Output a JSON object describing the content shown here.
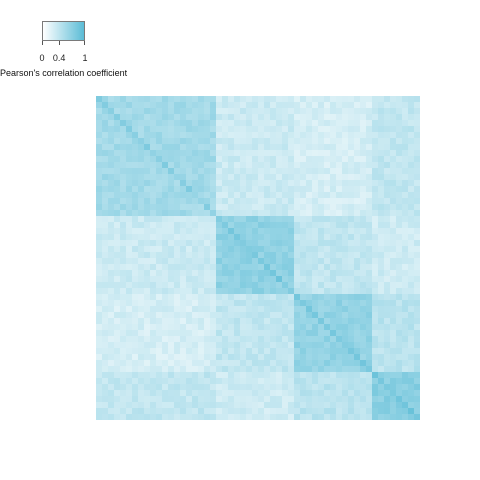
{
  "chart_data": {
    "type": "heatmap",
    "title": "",
    "xlabel": "",
    "ylabel": "",
    "legend": {
      "title": "Pearson's correlation coefficient",
      "ticks": [
        "0",
        "0.4",
        "1"
      ],
      "tick_values": [
        0,
        0.4,
        1
      ],
      "range": [
        0,
        1
      ],
      "placement": "top-left",
      "color_low": "#ffffff",
      "color_high": "#5bbcd6"
    },
    "grid_size": [
      54,
      54
    ],
    "cluster_blocks": [
      {
        "rows": [
          0,
          20
        ],
        "cols": [
          0,
          20
        ],
        "mean_r": 0.56
      },
      {
        "rows": [
          0,
          20
        ],
        "cols": [
          20,
          33
        ],
        "mean_r": 0.32
      },
      {
        "rows": [
          0,
          20
        ],
        "cols": [
          33,
          46
        ],
        "mean_r": 0.26
      },
      {
        "rows": [
          0,
          20
        ],
        "cols": [
          46,
          54
        ],
        "mean_r": 0.38
      },
      {
        "rows": [
          20,
          33
        ],
        "cols": [
          0,
          20
        ],
        "mean_r": 0.32
      },
      {
        "rows": [
          20,
          33
        ],
        "cols": [
          20,
          33
        ],
        "mean_r": 0.68
      },
      {
        "rows": [
          20,
          33
        ],
        "cols": [
          33,
          46
        ],
        "mean_r": 0.38
      },
      {
        "rows": [
          20,
          33
        ],
        "cols": [
          46,
          54
        ],
        "mean_r": 0.3
      },
      {
        "rows": [
          33,
          46
        ],
        "cols": [
          0,
          20
        ],
        "mean_r": 0.26
      },
      {
        "rows": [
          33,
          46
        ],
        "cols": [
          20,
          33
        ],
        "mean_r": 0.38
      },
      {
        "rows": [
          33,
          46
        ],
        "cols": [
          33,
          46
        ],
        "mean_r": 0.66
      },
      {
        "rows": [
          33,
          46
        ],
        "cols": [
          46,
          54
        ],
        "mean_r": 0.42
      },
      {
        "rows": [
          46,
          54
        ],
        "cols": [
          0,
          20
        ],
        "mean_r": 0.38
      },
      {
        "rows": [
          46,
          54
        ],
        "cols": [
          20,
          33
        ],
        "mean_r": 0.3
      },
      {
        "rows": [
          46,
          54
        ],
        "cols": [
          33,
          46
        ],
        "mean_r": 0.42
      },
      {
        "rows": [
          46,
          54
        ],
        "cols": [
          46,
          54
        ],
        "mean_r": 0.72
      }
    ]
  }
}
